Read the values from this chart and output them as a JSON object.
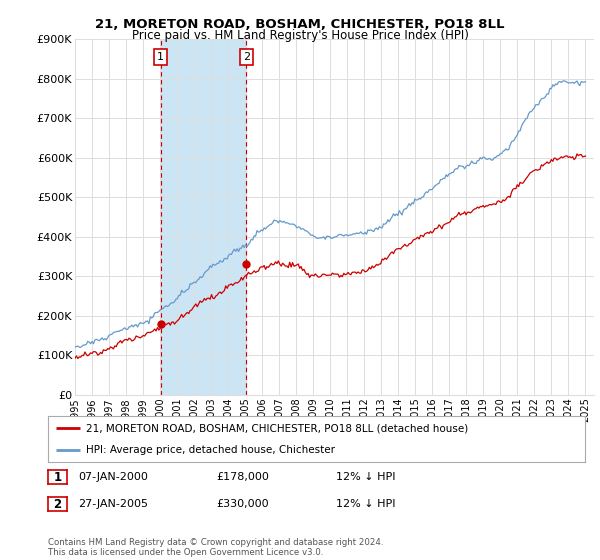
{
  "title": "21, MORETON ROAD, BOSHAM, CHICHESTER, PO18 8LL",
  "subtitle": "Price paid vs. HM Land Registry's House Price Index (HPI)",
  "ylabel_ticks": [
    "£0",
    "£100K",
    "£200K",
    "£300K",
    "£400K",
    "£500K",
    "£600K",
    "£700K",
    "£800K",
    "£900K"
  ],
  "ylim": [
    0,
    900000
  ],
  "xlim_start": 1995.0,
  "xlim_end": 2025.5,
  "sale1_date": 2000.04,
  "sale1_price": 178000,
  "sale2_date": 2005.07,
  "sale2_price": 330000,
  "shade_color": "#cce5f5",
  "line_color_red": "#cc0000",
  "line_color_blue": "#6699cc",
  "dashed_line_color": "#cc0000",
  "legend_label1": "21, MORETON ROAD, BOSHAM, CHICHESTER, PO18 8LL (detached house)",
  "legend_label2": "HPI: Average price, detached house, Chichester",
  "table_row1": [
    "1",
    "07-JAN-2000",
    "£178,000",
    "12% ↓ HPI"
  ],
  "table_row2": [
    "2",
    "27-JAN-2005",
    "£330,000",
    "12% ↓ HPI"
  ],
  "footnote": "Contains HM Land Registry data © Crown copyright and database right 2024.\nThis data is licensed under the Open Government Licence v3.0.",
  "background_color": "#ffffff",
  "grid_color": "#dddddd",
  "xtick_years": [
    1995,
    1996,
    1997,
    1998,
    1999,
    2000,
    2001,
    2002,
    2003,
    2004,
    2005,
    2006,
    2007,
    2008,
    2009,
    2010,
    2011,
    2012,
    2013,
    2014,
    2015,
    2016,
    2017,
    2018,
    2019,
    2020,
    2021,
    2022,
    2023,
    2024,
    2025
  ]
}
